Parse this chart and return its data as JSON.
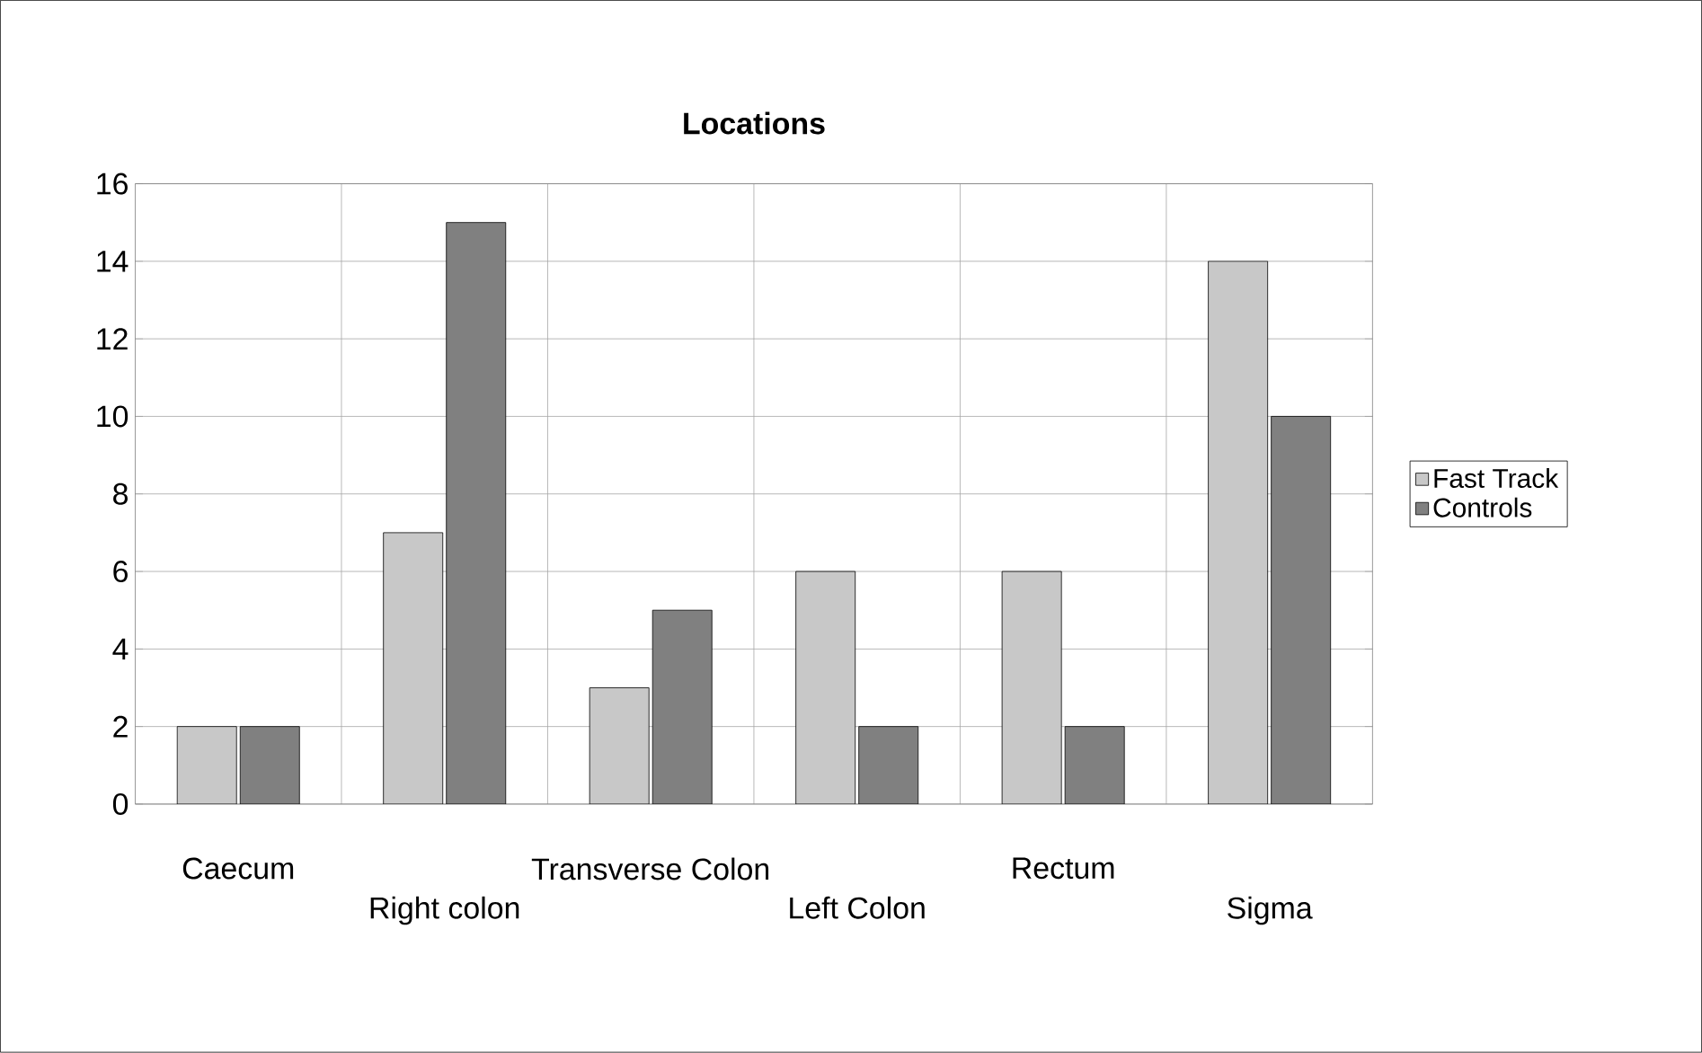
{
  "chart_data": {
    "type": "bar",
    "title": "Locations",
    "categories": [
      "Caecum",
      "Right colon",
      "Transverse Colon",
      "Left Colon",
      "Rectum",
      "Sigma"
    ],
    "series": [
      {
        "name": "Fast Track",
        "color": "#c8c8c8",
        "values": [
          2,
          7,
          3,
          6,
          6,
          14
        ]
      },
      {
        "name": "Controls",
        "color": "#808080",
        "values": [
          2,
          15,
          5,
          2,
          2,
          10
        ]
      }
    ],
    "ylim": [
      0,
      16
    ],
    "yticks": [
      0,
      2,
      4,
      6,
      8,
      10,
      12,
      14,
      16
    ],
    "grid": true,
    "legend": "right"
  }
}
